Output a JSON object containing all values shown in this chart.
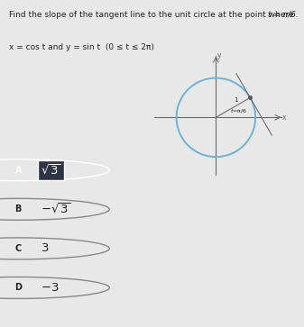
{
  "title_line1": "Find the slope of the tangent line to the unit circle at the point where ",
  "title_t": "t = π/6.",
  "title_line2": "x = cos t and y = sin t  (0 ≤ t ≤ 2π)",
  "bg_color": "#e8e8e8",
  "answer_bg": "#2e3444",
  "circle_color": "#6ab4d8",
  "t_value": 0.5235987755982988,
  "axis_color": "#666666",
  "text_color": "#222222",
  "font_size_main": 6.5,
  "font_size_option": 8.5,
  "options": [
    {
      "label": "A",
      "math": "$\\sqrt{3}$",
      "selected": true
    },
    {
      "label": "B",
      "math": "$-\\sqrt{3}$",
      "selected": false
    },
    {
      "label": "C",
      "math": "$3$",
      "selected": false
    },
    {
      "label": "D",
      "math": "$-3$",
      "selected": false
    }
  ]
}
